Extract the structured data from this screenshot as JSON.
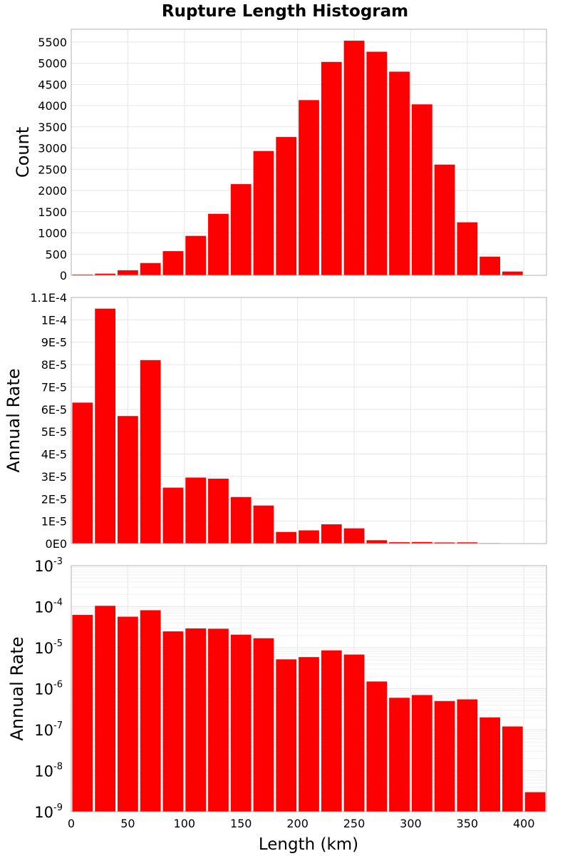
{
  "chart_data": {
    "type": "bar",
    "title": "Rupture Length Histogram",
    "xlabel": "Length (km)",
    "xlim": [
      0,
      420
    ],
    "x_ticks": [
      "0",
      "50",
      "100",
      "150",
      "200",
      "250",
      "300",
      "350",
      "400"
    ],
    "bin_width_km": 20,
    "bin_centers": [
      10,
      30,
      50,
      70,
      90,
      110,
      130,
      150,
      170,
      190,
      210,
      230,
      250,
      270,
      290,
      310,
      330,
      350,
      370,
      390,
      410
    ],
    "bar_color": "#ff0000",
    "panels": [
      {
        "ylabel": "Count",
        "ylim": [
          0,
          5800
        ],
        "y_scale": "linear",
        "y_ticks": [
          "0",
          "500",
          "1000",
          "1500",
          "2000",
          "2500",
          "3000",
          "3500",
          "4000",
          "4500",
          "5000",
          "5500"
        ],
        "values": [
          20,
          40,
          120,
          290,
          570,
          930,
          1450,
          2150,
          2930,
          3260,
          4130,
          5030,
          5530,
          5270,
          4800,
          4030,
          2610,
          1250,
          440,
          90,
          0
        ]
      },
      {
        "ylabel": "Annual Rate",
        "ylim": [
          0,
          0.00011
        ],
        "y_scale": "linear",
        "y_ticks": [
          "0E0",
          "1E-5",
          "2E-5",
          "3E-5",
          "4E-5",
          "5E-5",
          "6E-5",
          "7E-5",
          "8E-5",
          "9E-5",
          "1E-4",
          "1.1E-4"
        ],
        "values": [
          6.3e-05,
          0.000105,
          5.7e-05,
          8.2e-05,
          2.5e-05,
          2.95e-05,
          2.9e-05,
          2.08e-05,
          1.7e-05,
          5.2e-06,
          5.9e-06,
          8.6e-06,
          6.8e-06,
          1.5e-06,
          6e-07,
          7e-07,
          5e-07,
          5.5e-07,
          2e-07,
          1.2e-07,
          3e-09
        ]
      },
      {
        "ylabel": "Annual Rate",
        "ylim": [
          1e-09,
          0.001
        ],
        "y_scale": "log",
        "y_ticks": [
          {
            "base": "10",
            "exp": "-9"
          },
          {
            "base": "10",
            "exp": "-8"
          },
          {
            "base": "10",
            "exp": "-7"
          },
          {
            "base": "10",
            "exp": "-6"
          },
          {
            "base": "10",
            "exp": "-5"
          },
          {
            "base": "10",
            "exp": "-4"
          },
          {
            "base": "10",
            "exp": "-3"
          }
        ],
        "values": [
          6.3e-05,
          0.000105,
          5.7e-05,
          8.2e-05,
          2.5e-05,
          2.95e-05,
          2.9e-05,
          2.08e-05,
          1.7e-05,
          5.2e-06,
          5.9e-06,
          8.6e-06,
          6.8e-06,
          1.5e-06,
          6e-07,
          7e-07,
          5e-07,
          5.5e-07,
          2e-07,
          1.2e-07,
          3e-09
        ]
      }
    ]
  }
}
